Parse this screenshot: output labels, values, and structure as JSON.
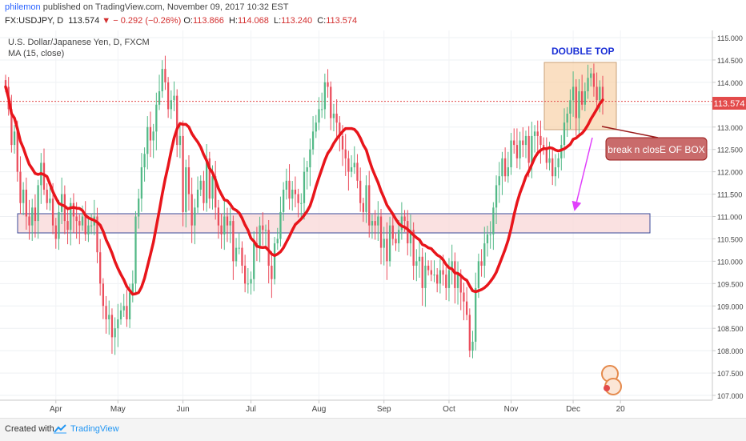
{
  "header": {
    "author": "philemon",
    "published_text": "published on TradingView.com, November 09, 2017 10:32 EST",
    "symbol": "FX:USDJPY, D",
    "last_price": "113.574",
    "change": "− 0.292 (−0.26%)",
    "open_label": "O:",
    "open": "113.866",
    "high_label": "H:",
    "high": "114.068",
    "low_label": "L:",
    "low": "113.240",
    "close_label": "C:",
    "close": "113.574"
  },
  "chart_data": {
    "type": "candlestick",
    "title": "U.S. Dollar/Japanese Yen, D, FXCM",
    "indicator": "MA (15, close)",
    "x_ticks": [
      "Apr",
      "May",
      "Jun",
      "Jul",
      "Aug",
      "Sep",
      "Oct",
      "Nov",
      "Dec",
      "20"
    ],
    "y_ticks": [
      "115.000",
      "114.500",
      "114.000",
      "113.500",
      "113.000",
      "112.500",
      "112.000",
      "111.500",
      "111.000",
      "110.500",
      "110.000",
      "109.500",
      "109.000",
      "108.500",
      "108.000",
      "107.500",
      "107.000"
    ],
    "ylim": [
      106.9,
      115.1
    ],
    "price_label": "113.574",
    "ma_color": "#e8151b",
    "up_color": "#53b987",
    "down_color": "#eb4d5c",
    "closes": [
      113.9,
      113.4,
      112.6,
      112.9,
      112.0,
      111.3,
      111.6,
      111.0,
      110.8,
      111.2,
      110.9,
      111.7,
      112.2,
      111.6,
      111.3,
      111.4,
      110.8,
      110.5,
      111.1,
      111.5,
      110.9,
      110.7,
      111.3,
      111.0,
      110.9,
      110.8,
      111.0,
      110.6,
      110.8,
      110.8,
      111.0,
      110.2,
      109.5,
      109.0,
      108.7,
      108.8,
      108.3,
      108.5,
      108.7,
      108.9,
      109.0,
      108.7,
      109.3,
      109.5,
      111.0,
      111.4,
      112.1,
      112.4,
      113.0,
      112.7,
      112.9,
      113.5,
      113.8,
      114.3,
      114.0,
      113.4,
      113.6,
      113.7,
      112.6,
      112.8,
      111.1,
      112.1,
      111.5,
      110.8,
      111.2,
      111.6,
      111.8,
      111.3,
      112.3,
      111.4,
      111.9,
      111.2,
      110.8,
      110.6,
      111.0,
      110.8,
      110.9,
      110.0,
      110.3,
      110.3,
      109.9,
      109.5,
      109.5,
      109.6,
      110.4,
      110.3,
      110.8,
      110.7,
      110.7,
      109.9,
      109.6,
      110.4,
      110.5,
      111.1,
      111.6,
      111.8,
      111.4,
      111.6,
      111.5,
      111.3,
      111.3,
      112.0,
      112.1,
      112.5,
      112.9,
      113.1,
      113.4,
      113.4,
      114.0,
      113.9,
      113.2,
      113.3,
      113.1,
      112.8,
      112.5,
      112.3,
      112.0,
      112.1,
      112.2,
      111.8,
      111.3,
      111.1,
      111.7,
      110.8,
      110.9,
      110.8,
      111.0,
      110.3,
      110.5,
      110.0,
      110.8,
      110.5,
      110.4,
      110.7,
      111.0,
      110.9,
      110.4,
      110.7,
      109.9,
      110.0,
      110.1,
      109.4,
      109.9,
      109.8,
      109.7,
      109.7,
      109.5,
      109.8,
      109.7,
      109.4,
      109.8,
      110.0,
      109.4,
      109.7,
      109.3,
      109.1,
      108.8,
      108.0,
      108.2,
      109.4,
      110.0,
      109.9,
      110.4,
      110.6,
      110.6,
      111.2,
      111.7,
      111.9,
      112.3,
      111.9,
      112.1,
      112.7,
      112.6,
      112.3,
      112.7,
      112.6,
      112.8,
      112.2,
      112.8,
      112.9,
      112.8,
      112.6,
      112.5,
      112.2,
      112.3,
      111.9,
      112.1,
      112.3,
      112.6,
      113.1,
      113.3,
      113.6,
      113.9,
      113.2,
      113.8,
      113.5,
      113.8,
      114.1,
      114.2,
      113.9,
      113.6,
      113.9,
      113.574
    ]
  },
  "annotations": {
    "box_title": "DOUBLE TOP",
    "callout": "break n closE OF BOX"
  },
  "footer": {
    "created_with": "Created with",
    "brand": "TradingView"
  }
}
